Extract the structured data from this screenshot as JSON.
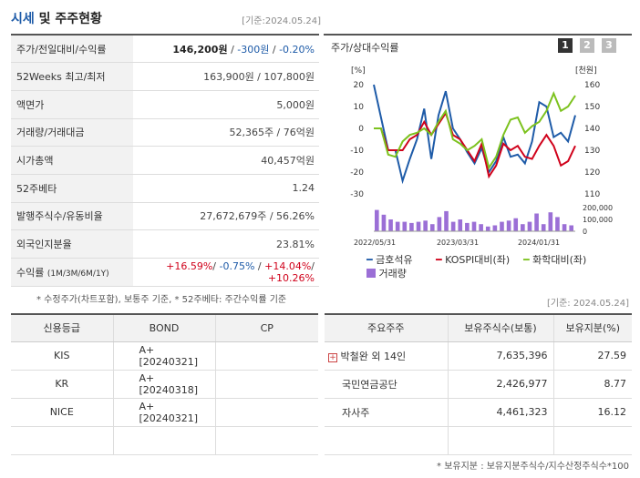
{
  "header": {
    "title_a": "시세",
    "title_b": " 및 주주현황",
    "date": "[기준:2024.05.24]"
  },
  "price_rows": [
    {
      "label": "주가/전일대비/수익률"
    },
    {
      "label": "52Weeks 최고/최저",
      "value": "163,900원 / 107,800원"
    },
    {
      "label": "액면가",
      "value": "5,000원"
    },
    {
      "label": "거래량/거래대금",
      "value": "52,365주 / 76억원"
    },
    {
      "label": "시가총액",
      "value": "40,457억원"
    },
    {
      "label": "52주베타",
      "value": "1.24"
    },
    {
      "label": "발행주식수/유동비율",
      "value": "27,672,679주 / 56.26%"
    },
    {
      "label": "외국인지분율",
      "value": "23.81%"
    },
    {
      "label": "수익률",
      "label_sub": "(1M/3M/6M/1Y)"
    }
  ],
  "price": {
    "current": "146,200원",
    "sep1": " / ",
    "change": "-300원",
    "sep2": " / ",
    "pct": "-0.20%"
  },
  "returns": {
    "r1": "+16.59%",
    "r2": "-0.75%",
    "r3": "+14.04%",
    "r4": "+10.26%",
    "sep": "/ "
  },
  "note1": "* 수정주가(차트포함), 보통주 기준, * 52주베타: 주간수익률 기준",
  "chart_title": "주가/상대수익률",
  "pages": [
    "1",
    "2",
    "3"
  ],
  "chart_data": {
    "type": "line",
    "left_axis_label": "[%]",
    "right_axis_label": "[천원]",
    "left_ticks": [
      20,
      10,
      0,
      -10,
      -20,
      -30
    ],
    "right_ticks": [
      160,
      150,
      140,
      130,
      120,
      110
    ],
    "volume_ticks": [
      "200,000",
      "100,000",
      "0"
    ],
    "x_labels": [
      "2022/05/31",
      "2023/03/31",
      "2024/01/31"
    ],
    "series": [
      {
        "name": "금호석유",
        "color": "#1e5ba8",
        "values": [
          20,
          5,
          -10,
          -10,
          -24,
          -14,
          -5,
          9,
          -14,
          6,
          17,
          0,
          -5,
          -11,
          -16,
          -9,
          -20,
          -15,
          -4,
          -13,
          -12,
          -16,
          -6,
          12,
          10,
          -4,
          -2,
          -6,
          6
        ]
      },
      {
        "name": "KOSPI대비(좌)",
        "color": "#d0021b",
        "values": [
          0,
          0,
          -10,
          -10,
          -10,
          -5,
          -3,
          3,
          -3,
          2,
          7,
          -3,
          -5,
          -10,
          -15,
          -7,
          -22,
          -17,
          -7,
          -10,
          -8,
          -13,
          -14,
          -8,
          -3,
          -8,
          -17,
          -15,
          -8
        ]
      },
      {
        "name": "화학대비(좌)",
        "color": "#7cc21e",
        "values": [
          0,
          0,
          -12,
          -13,
          -6,
          -3,
          -2,
          0,
          -3,
          3,
          8,
          -5,
          -7,
          -10,
          -8,
          -5,
          -18,
          -13,
          -3,
          4,
          5,
          -2,
          1,
          3,
          8,
          16,
          8,
          10,
          15
        ]
      }
    ],
    "volume_name": "거래량",
    "volume_color": "#9b6fd6",
    "volume": [
      90,
      70,
      50,
      40,
      40,
      35,
      40,
      45,
      30,
      60,
      85,
      40,
      50,
      35,
      40,
      30,
      20,
      25,
      40,
      45,
      55,
      30,
      40,
      75,
      30,
      80,
      60,
      30,
      25
    ],
    "ylim_left": [
      -30,
      20
    ]
  },
  "date2": "[기준: 2024.05.24]",
  "credit": {
    "headers": [
      "신용등급",
      "BOND",
      "CP"
    ],
    "rows": [
      {
        "agency": "KIS",
        "bond": "A+  [20240321]",
        "cp": ""
      },
      {
        "agency": "KR",
        "bond": "A+  [20240318]",
        "cp": ""
      },
      {
        "agency": "NICE",
        "bond": "A+  [20240321]",
        "cp": ""
      }
    ]
  },
  "holders": {
    "headers": [
      "주요주주",
      "보유주식수(보통)",
      "보유지분(%)"
    ],
    "rows": [
      {
        "name": "박철완 외 14인",
        "shares": "7,635,396",
        "pct": "27.59"
      },
      {
        "name": "국민연금공단",
        "shares": "2,426,977",
        "pct": "8.77"
      },
      {
        "name": "자사주",
        "shares": "4,461,323",
        "pct": "16.12"
      }
    ]
  },
  "note2": "* 보유지분 : 보유지분주식수/지수산정주식수*100"
}
